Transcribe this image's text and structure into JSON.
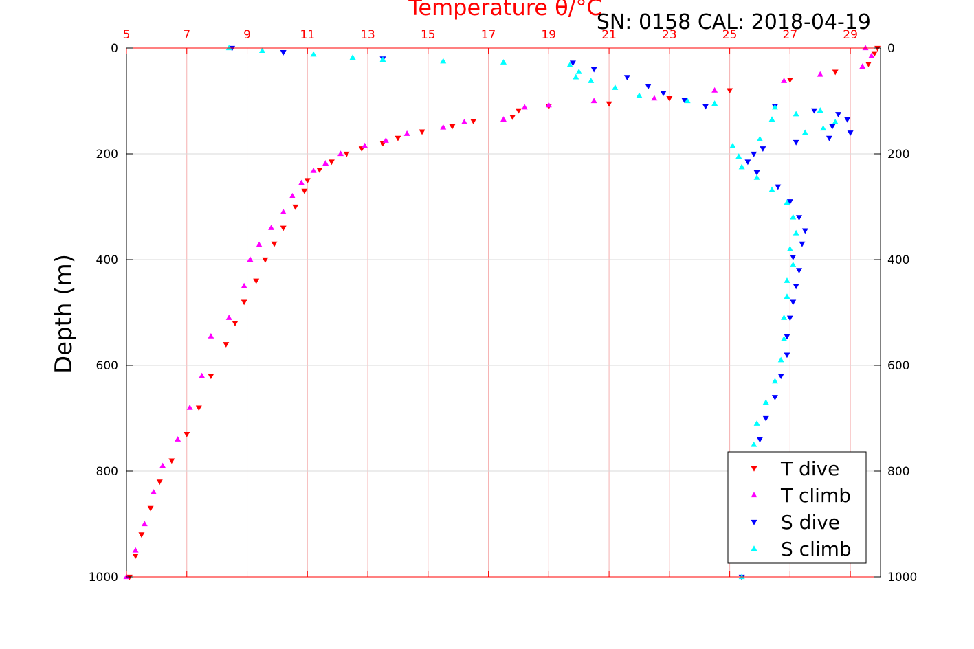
{
  "chart_data": {
    "type": "scatter",
    "title": "Temperature θ/°C",
    "subtitle": "SN: 0158  CAL: 2018-04-19",
    "ylabel": "Depth (m)",
    "x_ticks": [
      "5",
      "7",
      "9",
      "11",
      "13",
      "15",
      "17",
      "19",
      "21",
      "23",
      "25",
      "27",
      "29"
    ],
    "y_ticks": [
      "0",
      "200",
      "400",
      "600",
      "800",
      "1000"
    ],
    "xlim": [
      5,
      30
    ],
    "ylim": [
      0,
      1000
    ],
    "y_reversed": true,
    "grid": true,
    "legend_position": "bottom-right",
    "colors": {
      "t_dive": "#ff0000",
      "t_climb": "#ff00ff",
      "s_dive": "#0000ff",
      "s_climb": "#00ffff",
      "axis_top": "#ff0000",
      "grid_temperature": "#f5b0b0",
      "grid_depth": "#d9d9d9"
    },
    "series": [
      {
        "name": "T dive",
        "marker": "triangle-down",
        "color": "#ff0000",
        "points": [
          [
            29.9,
            0
          ],
          [
            29.8,
            10
          ],
          [
            29.6,
            30
          ],
          [
            28.5,
            45
          ],
          [
            27.0,
            60
          ],
          [
            25.0,
            80
          ],
          [
            23.0,
            95
          ],
          [
            21.0,
            105
          ],
          [
            19.0,
            110
          ],
          [
            18.0,
            118
          ],
          [
            17.8,
            130
          ],
          [
            16.5,
            138
          ],
          [
            15.8,
            148
          ],
          [
            14.8,
            158
          ],
          [
            14.0,
            170
          ],
          [
            13.5,
            180
          ],
          [
            12.8,
            190
          ],
          [
            12.3,
            200
          ],
          [
            11.8,
            215
          ],
          [
            11.4,
            230
          ],
          [
            11.0,
            250
          ],
          [
            10.9,
            270
          ],
          [
            10.6,
            300
          ],
          [
            10.2,
            340
          ],
          [
            9.9,
            370
          ],
          [
            9.6,
            400
          ],
          [
            9.3,
            440
          ],
          [
            8.9,
            480
          ],
          [
            8.6,
            520
          ],
          [
            8.3,
            560
          ],
          [
            7.8,
            620
          ],
          [
            7.4,
            680
          ],
          [
            7.0,
            730
          ],
          [
            6.5,
            780
          ],
          [
            6.1,
            820
          ],
          [
            5.8,
            870
          ],
          [
            5.5,
            920
          ],
          [
            5.3,
            960
          ],
          [
            5.1,
            1000
          ]
        ]
      },
      {
        "name": "T climb",
        "marker": "triangle-up",
        "color": "#ff00ff",
        "points": [
          [
            29.5,
            0
          ],
          [
            29.7,
            15
          ],
          [
            29.4,
            35
          ],
          [
            28.0,
            50
          ],
          [
            26.8,
            62
          ],
          [
            24.5,
            80
          ],
          [
            22.5,
            95
          ],
          [
            20.5,
            100
          ],
          [
            19.0,
            108
          ],
          [
            18.2,
            112
          ],
          [
            17.5,
            135
          ],
          [
            16.2,
            140
          ],
          [
            15.5,
            150
          ],
          [
            14.3,
            162
          ],
          [
            13.6,
            175
          ],
          [
            12.9,
            185
          ],
          [
            12.1,
            200
          ],
          [
            11.6,
            218
          ],
          [
            11.2,
            232
          ],
          [
            10.8,
            255
          ],
          [
            10.5,
            280
          ],
          [
            10.2,
            310
          ],
          [
            9.8,
            340
          ],
          [
            9.4,
            372
          ],
          [
            9.1,
            400
          ],
          [
            8.9,
            450
          ],
          [
            8.4,
            510
          ],
          [
            7.8,
            545
          ],
          [
            7.5,
            620
          ],
          [
            7.1,
            680
          ],
          [
            6.7,
            740
          ],
          [
            6.2,
            790
          ],
          [
            5.9,
            840
          ],
          [
            5.6,
            900
          ],
          [
            5.3,
            950
          ],
          [
            5.0,
            1000
          ]
        ]
      },
      {
        "name": "S dive",
        "marker": "triangle-down",
        "color": "#0000ff",
        "points": [
          [
            8.5,
            0
          ],
          [
            10.2,
            8
          ],
          [
            13.5,
            20
          ],
          [
            19.8,
            28
          ],
          [
            20.5,
            40
          ],
          [
            21.6,
            55
          ],
          [
            22.3,
            72
          ],
          [
            22.8,
            85
          ],
          [
            23.5,
            98
          ],
          [
            24.2,
            110
          ],
          [
            26.5,
            110
          ],
          [
            27.8,
            118
          ],
          [
            28.6,
            125
          ],
          [
            28.9,
            135
          ],
          [
            28.4,
            148
          ],
          [
            29.0,
            160
          ],
          [
            28.3,
            170
          ],
          [
            27.2,
            178
          ],
          [
            26.1,
            190
          ],
          [
            25.8,
            200
          ],
          [
            25.6,
            215
          ],
          [
            25.9,
            235
          ],
          [
            26.6,
            262
          ],
          [
            27.0,
            290
          ],
          [
            27.3,
            320
          ],
          [
            27.5,
            345
          ],
          [
            27.4,
            370
          ],
          [
            27.1,
            395
          ],
          [
            27.3,
            420
          ],
          [
            27.2,
            450
          ],
          [
            27.1,
            480
          ],
          [
            27.0,
            510
          ],
          [
            26.9,
            545
          ],
          [
            26.9,
            580
          ],
          [
            26.7,
            620
          ],
          [
            26.5,
            660
          ],
          [
            26.2,
            700
          ],
          [
            26.0,
            740
          ],
          [
            25.9,
            780
          ],
          [
            25.8,
            820
          ],
          [
            25.7,
            860
          ],
          [
            25.6,
            900
          ],
          [
            25.5,
            950
          ],
          [
            25.4,
            1000
          ]
        ]
      },
      {
        "name": "S climb",
        "marker": "triangle-up",
        "color": "#00ffff",
        "points": [
          [
            8.4,
            0
          ],
          [
            9.5,
            5
          ],
          [
            11.2,
            12
          ],
          [
            12.5,
            18
          ],
          [
            13.5,
            22
          ],
          [
            15.5,
            25
          ],
          [
            17.5,
            27
          ],
          [
            19.7,
            32
          ],
          [
            20.0,
            45
          ],
          [
            19.9,
            55
          ],
          [
            20.4,
            62
          ],
          [
            21.2,
            75
          ],
          [
            22.0,
            90
          ],
          [
            23.6,
            100
          ],
          [
            24.5,
            105
          ],
          [
            26.5,
            112
          ],
          [
            28.0,
            118
          ],
          [
            27.2,
            125
          ],
          [
            26.4,
            135
          ],
          [
            28.5,
            140
          ],
          [
            28.1,
            152
          ],
          [
            27.5,
            160
          ],
          [
            26.0,
            172
          ],
          [
            25.1,
            185
          ],
          [
            25.3,
            205
          ],
          [
            25.4,
            225
          ],
          [
            25.9,
            245
          ],
          [
            26.4,
            268
          ],
          [
            26.9,
            292
          ],
          [
            27.1,
            320
          ],
          [
            27.2,
            350
          ],
          [
            27.0,
            380
          ],
          [
            27.1,
            410
          ],
          [
            26.9,
            440
          ],
          [
            26.9,
            470
          ],
          [
            26.8,
            510
          ],
          [
            26.8,
            550
          ],
          [
            26.7,
            590
          ],
          [
            26.5,
            630
          ],
          [
            26.2,
            670
          ],
          [
            25.9,
            710
          ],
          [
            25.8,
            750
          ],
          [
            25.7,
            790
          ],
          [
            25.6,
            830
          ],
          [
            25.5,
            870
          ],
          [
            25.5,
            910
          ],
          [
            25.4,
            960
          ],
          [
            25.4,
            1000
          ]
        ]
      }
    ]
  }
}
